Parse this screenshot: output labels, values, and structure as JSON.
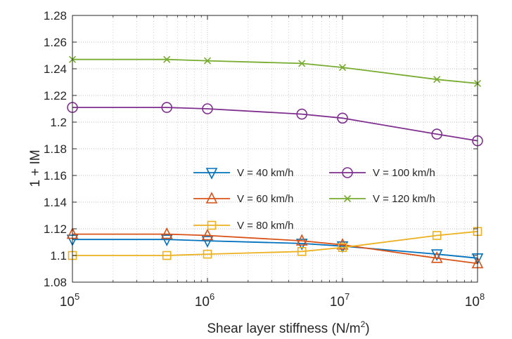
{
  "chart_data": {
    "type": "line",
    "title": "",
    "xlabel": "Shear layer stiffness (N/m",
    "xlabel_sup": "2",
    "xlabel_suffix": ")",
    "ylabel": "1 + IM",
    "xscale": "log",
    "x": [
      100000,
      500000,
      1000000,
      5000000,
      10000000,
      50000000,
      100000000
    ],
    "xlim": [
      100000,
      100000000
    ],
    "ylim": [
      1.08,
      1.28
    ],
    "x_ticks": [
      {
        "base": "10",
        "exp": "5",
        "value": 100000
      },
      {
        "base": "10",
        "exp": "6",
        "value": 1000000
      },
      {
        "base": "10",
        "exp": "7",
        "value": 10000000
      },
      {
        "base": "10",
        "exp": "8",
        "value": 100000000
      }
    ],
    "y_ticks": [
      "1.08",
      "1.1",
      "1.12",
      "1.14",
      "1.16",
      "1.18",
      "1.2",
      "1.22",
      "1.24",
      "1.26",
      "1.28"
    ],
    "grid": true,
    "legend_position": "center-right",
    "series": [
      {
        "name": "V = 40 km/h",
        "color": "#0072BD",
        "marker": "triangle-down",
        "values": [
          1.112,
          1.112,
          1.111,
          1.109,
          1.107,
          1.101,
          1.098
        ]
      },
      {
        "name": "V = 60 km/h",
        "color": "#D95319",
        "marker": "triangle-up",
        "values": [
          1.116,
          1.116,
          1.115,
          1.111,
          1.108,
          1.098,
          1.094
        ]
      },
      {
        "name": "V = 80 km/h",
        "color": "#EDB120",
        "marker": "square",
        "values": [
          1.1,
          1.1,
          1.101,
          1.103,
          1.106,
          1.115,
          1.118
        ]
      },
      {
        "name": "V = 100 km/h",
        "color": "#7E2F8E",
        "marker": "circle",
        "values": [
          1.211,
          1.211,
          1.21,
          1.206,
          1.203,
          1.191,
          1.186
        ]
      },
      {
        "name": "V = 120 km/h",
        "color": "#77AC30",
        "marker": "x",
        "values": [
          1.247,
          1.247,
          1.246,
          1.244,
          1.241,
          1.232,
          1.229
        ]
      }
    ]
  }
}
